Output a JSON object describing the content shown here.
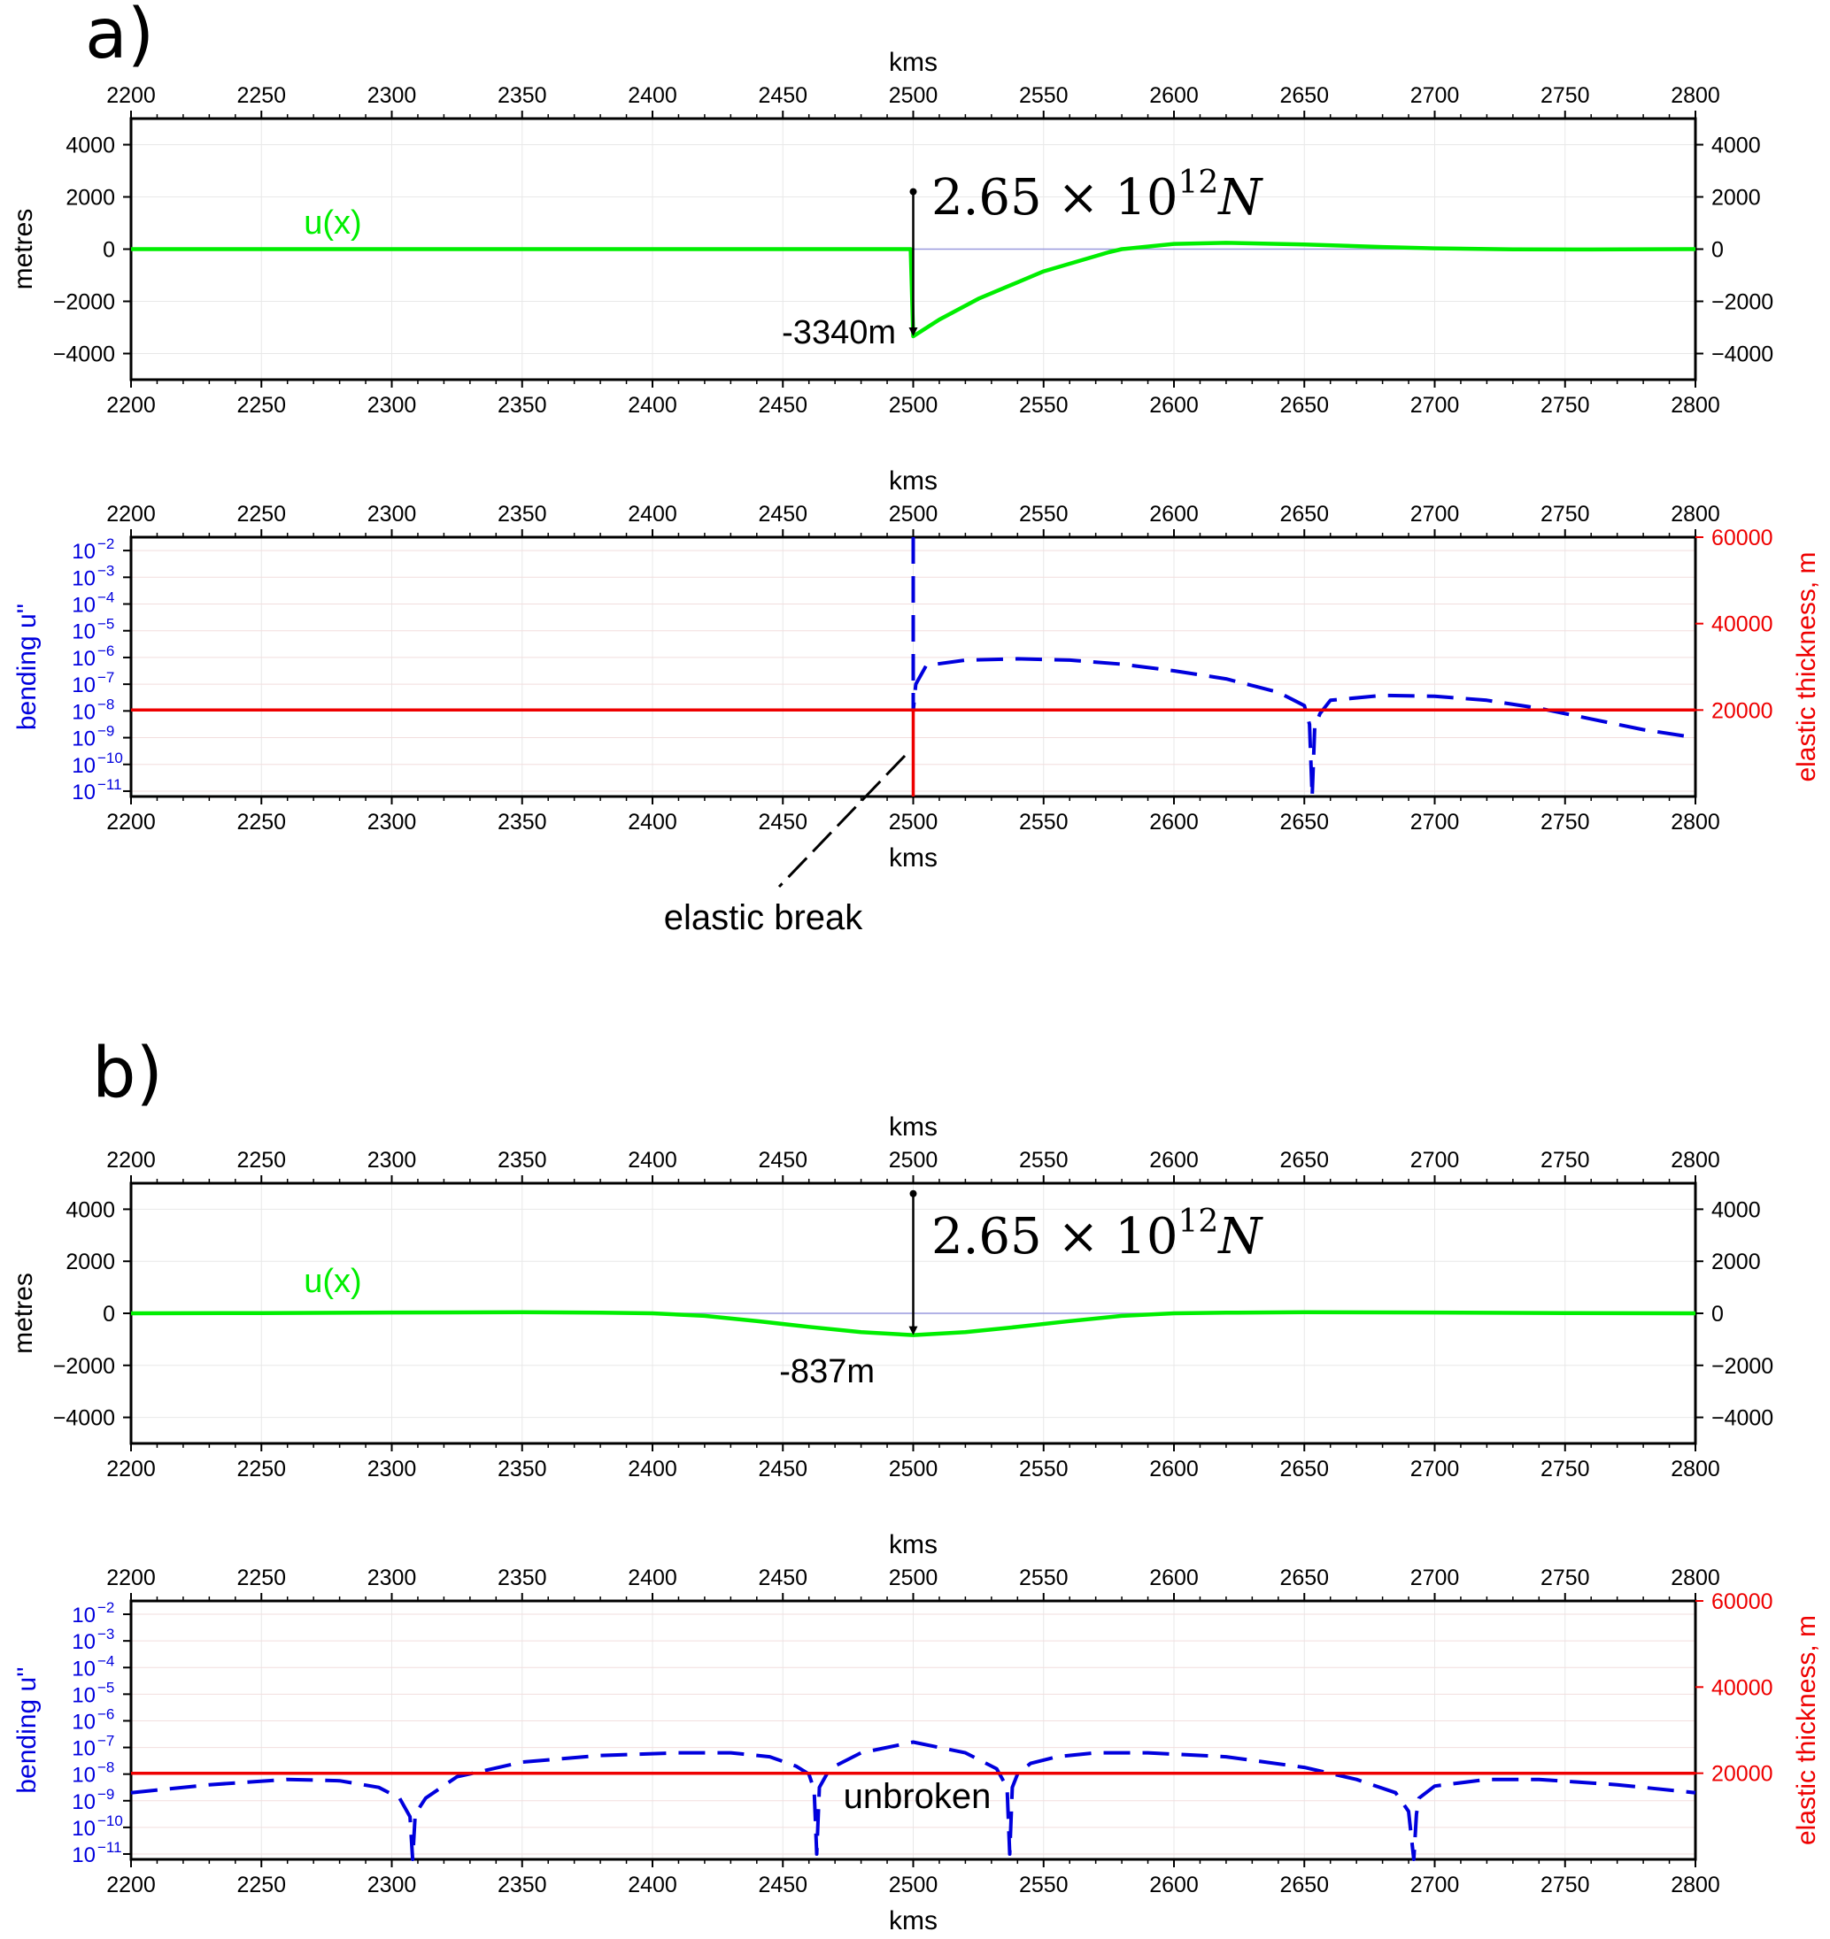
{
  "panels": {
    "a": {
      "label": "a)",
      "force_mantissa": "2.65",
      "force_times": "×",
      "force_base": "10",
      "force_exp": "12",
      "force_unit": "N",
      "min_label": "-3340m",
      "annotation": "elastic break"
    },
    "b": {
      "label": "b)",
      "force_mantissa": "2.65",
      "force_times": "×",
      "force_base": "10",
      "force_exp": "12",
      "force_unit": "N",
      "min_label": "-837m",
      "annotation": "unbroken"
    }
  },
  "axes": {
    "x_label": "kms",
    "x_ticks": [
      2200,
      2250,
      2300,
      2350,
      2400,
      2450,
      2500,
      2550,
      2600,
      2650,
      2700,
      2750,
      2800
    ],
    "y_label_top": "metres",
    "y_ticks_top": [
      4000,
      2000,
      0,
      -2000,
      -4000
    ],
    "y_label_bottom_left": "bending u''",
    "y_ticks_bottom_left": [
      "10",
      "10",
      "10",
      "10",
      "10",
      "10",
      "10",
      "10",
      "10",
      "10"
    ],
    "y_ticks_bottom_left_exp": [
      "−2",
      "−3",
      "−4",
      "−5",
      "−6",
      "−7",
      "−8",
      "−9",
      "−10",
      "−11"
    ],
    "y_label_bottom_right": "elastic thickness, m",
    "y_ticks_bottom_right": [
      60000,
      40000,
      20000
    ]
  },
  "legend": {
    "series_label": "u(x)"
  },
  "colors": {
    "deflection": "#00ee00",
    "bending": "#0000dd",
    "thickness": "#ee0000",
    "zero_line": "#9999dd",
    "axes": "#000000",
    "grid": "#e8e8e8"
  },
  "chart_data": [
    {
      "type": "line",
      "panel": "a-deflection",
      "xlabel": "kms",
      "ylabel": "metres",
      "xlim": [
        2200,
        2800
      ],
      "ylim": [
        -5000,
        5000
      ],
      "series": [
        {
          "name": "u(x)",
          "x": [
            2200,
            2300,
            2400,
            2499,
            2500,
            2510,
            2525,
            2550,
            2575,
            2580,
            2600,
            2620,
            2650,
            2680,
            2700,
            2730,
            2760,
            2800
          ],
          "y": [
            0,
            0,
            0,
            0,
            -3340,
            -2700,
            -1900,
            -850,
            -120,
            0,
            200,
            240,
            180,
            80,
            30,
            -10,
            -15,
            0
          ]
        }
      ],
      "point_load": {
        "x": 2500,
        "top": 2200,
        "bottom": -3340,
        "unit": "N",
        "value": "2.65e12"
      }
    },
    {
      "type": "line",
      "panel": "a-bending",
      "xlabel": "kms",
      "ylabel": "bending u''",
      "y2label": "elastic thickness, m",
      "xlim": [
        2200,
        2800
      ],
      "ylim_log10": [
        -11.2,
        -1.5
      ],
      "y2lim": [
        0,
        60000
      ],
      "series": [
        {
          "name": "bending",
          "x": [
            2500,
            2500,
            2501,
            2505,
            2520,
            2540,
            2560,
            2580,
            2600,
            2620,
            2640,
            2650,
            2652,
            2653,
            2654,
            2656,
            2660,
            2680,
            2700,
            2720,
            2740,
            2760,
            2780,
            2800
          ],
          "y": [
            -1.5,
            -8.0,
            -7.0,
            -6.3,
            -6.1,
            -6.05,
            -6.1,
            -6.25,
            -6.5,
            -6.8,
            -7.3,
            -7.8,
            -8.5,
            -11.2,
            -8.6,
            -8.1,
            -7.6,
            -7.42,
            -7.45,
            -7.6,
            -7.9,
            -8.3,
            -8.7,
            -9.0
          ]
        },
        {
          "name": "thickness",
          "x": [
            2200,
            2500,
            2500,
            2500,
            2800
          ],
          "y2": [
            20000,
            20000,
            0,
            20000,
            20000
          ]
        }
      ]
    },
    {
      "type": "line",
      "panel": "b-deflection",
      "xlabel": "kms",
      "ylabel": "metres",
      "xlim": [
        2200,
        2800
      ],
      "ylim": [
        -5000,
        5000
      ],
      "series": [
        {
          "name": "u(x)",
          "x": [
            2200,
            2250,
            2300,
            2350,
            2380,
            2400,
            2420,
            2440,
            2460,
            2480,
            2500,
            2520,
            2540,
            2560,
            2580,
            2600,
            2620,
            2650,
            2700,
            2750,
            2800
          ],
          "y": [
            0,
            10,
            30,
            40,
            25,
            0,
            -100,
            -300,
            -520,
            -720,
            -837,
            -720,
            -520,
            -300,
            -100,
            0,
            25,
            40,
            30,
            10,
            0
          ]
        }
      ],
      "point_load": {
        "x": 2500,
        "top": 4600,
        "bottom": -837,
        "unit": "N",
        "value": "2.65e12"
      }
    },
    {
      "type": "line",
      "panel": "b-bending",
      "xlabel": "kms",
      "ylabel": "bending u''",
      "y2label": "elastic thickness, m",
      "xlim": [
        2200,
        2800
      ],
      "ylim_log10": [
        -11.2,
        -1.5
      ],
      "y2lim": [
        0,
        60000
      ],
      "series": [
        {
          "name": "bending",
          "x": [
            2200,
            2230,
            2260,
            2280,
            2295,
            2303,
            2307,
            2308,
            2309,
            2313,
            2325,
            2350,
            2380,
            2410,
            2430,
            2445,
            2455,
            2460,
            2462,
            2463,
            2464,
            2468,
            2480,
            2500,
            2520,
            2532,
            2536,
            2537,
            2538,
            2540,
            2545,
            2555,
            2570,
            2590,
            2620,
            2650,
            2670,
            2685,
            2690,
            2692,
            2693,
            2694,
            2700,
            2720,
            2740,
            2770,
            2800
          ],
          "y": [
            -8.7,
            -8.4,
            -8.2,
            -8.25,
            -8.5,
            -8.9,
            -9.6,
            -11.2,
            -9.5,
            -8.9,
            -8.1,
            -7.55,
            -7.3,
            -7.2,
            -7.2,
            -7.35,
            -7.7,
            -8.0,
            -8.6,
            -11.0,
            -8.5,
            -7.8,
            -7.2,
            -6.8,
            -7.2,
            -7.8,
            -8.5,
            -11.0,
            -8.5,
            -8.0,
            -7.6,
            -7.35,
            -7.2,
            -7.2,
            -7.35,
            -7.75,
            -8.2,
            -8.7,
            -9.4,
            -11.2,
            -9.5,
            -8.9,
            -8.45,
            -8.2,
            -8.2,
            -8.4,
            -8.7
          ]
        },
        {
          "name": "thickness",
          "x": [
            2200,
            2800
          ],
          "y2": [
            20000,
            20000
          ]
        }
      ]
    }
  ]
}
